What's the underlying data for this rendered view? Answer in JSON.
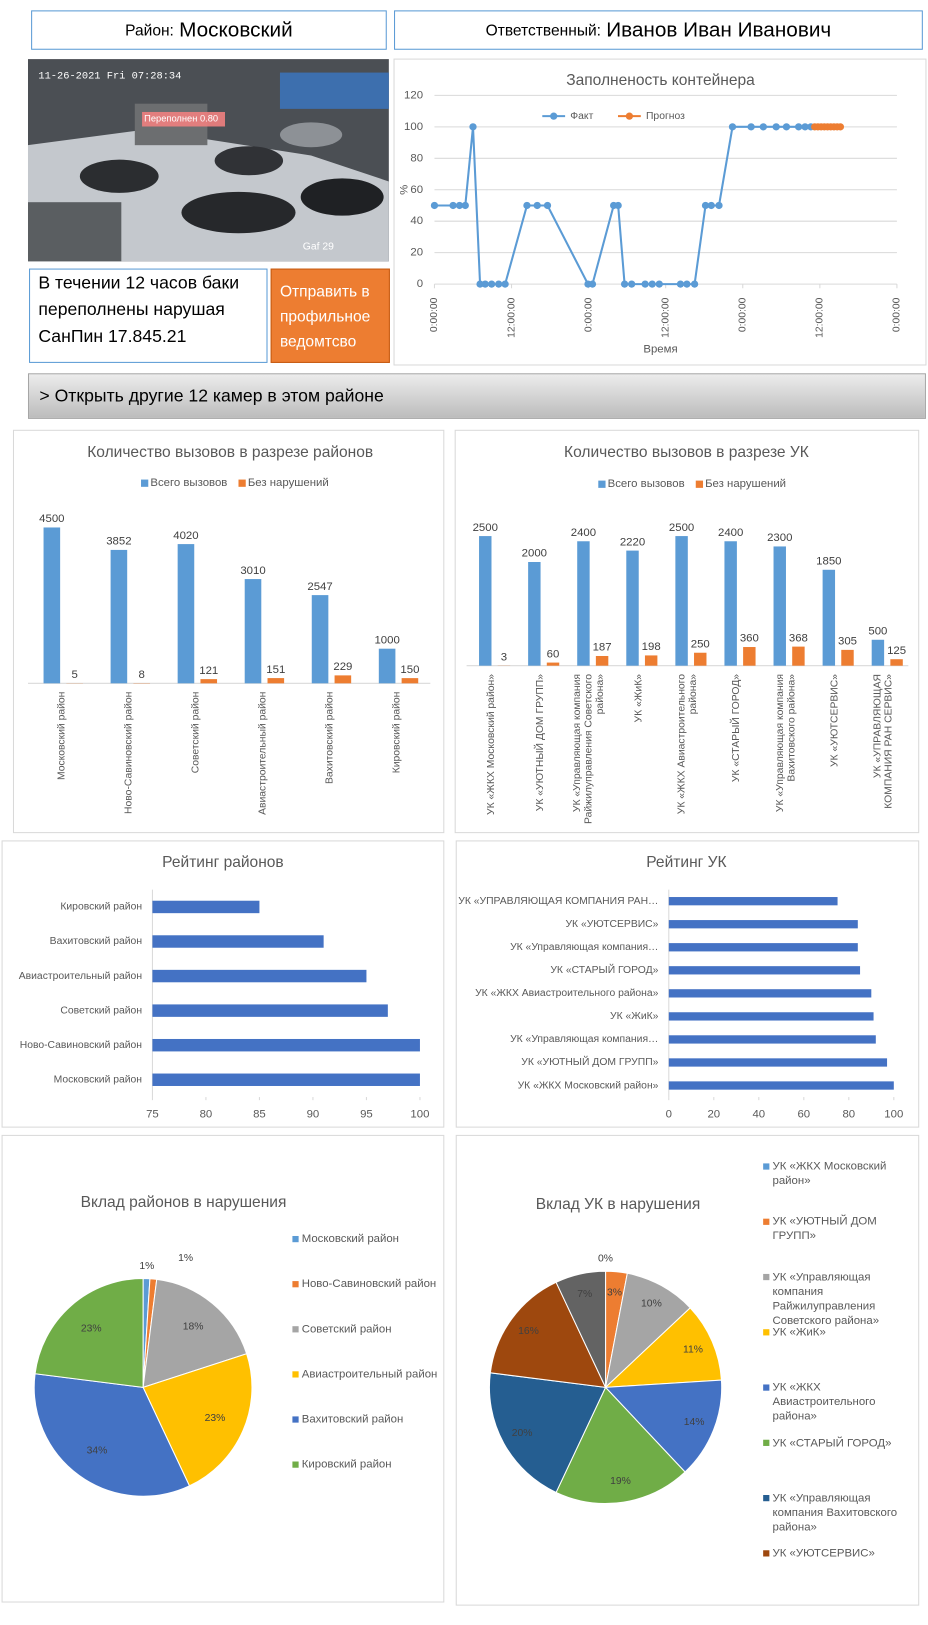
{
  "header": {
    "district_label": "Район:",
    "district": "Московский",
    "responsible_label": "Ответственный:",
    "responsible": "Иванов Иван Иванович"
  },
  "camera": {
    "timestamp": "11-26-2021 Fri 07:28:34",
    "detection": "Переполнен 0.80",
    "camera_name": "Gaf 29"
  },
  "alert": {
    "text": "В течении 12 часов баки переполнены нарушая  СанПин 17.845.21",
    "button": "Отправить в профильное ведомтсво"
  },
  "cameras_link": "> Открыть другие 12 камер в этом районе",
  "chart_data": [
    {
      "type": "line",
      "title": "Заполненость контейнера",
      "y_label": "%",
      "x_label": "Время",
      "xlim": [
        0,
        72
      ],
      "xticks": [
        {
          "value": 0,
          "label": "0:00:00"
        },
        {
          "value": 12,
          "label": "12:00:00"
        },
        {
          "value": 24,
          "label": "0:00:00"
        },
        {
          "value": 36,
          "label": "12:00:00"
        },
        {
          "value": 48,
          "label": "0:00:00"
        },
        {
          "value": 60,
          "label": "12:00:00"
        },
        {
          "value": 72,
          "label": "0:00:00"
        }
      ],
      "ylim": [
        0,
        120
      ],
      "yticks": [
        0,
        20,
        40,
        60,
        80,
        100,
        120
      ],
      "grid": true,
      "legend": "top",
      "series": [
        {
          "name": "Факт",
          "color": "#5b9bd5",
          "x": [
            0,
            2.9,
            3.9,
            4.8,
            6,
            7.1,
            7.9,
            8.9,
            10,
            11,
            14.4,
            16,
            17.6,
            23.9,
            24.6,
            27.9,
            28.6,
            29.6,
            30.7,
            32.8,
            33.9,
            35,
            38.3,
            39.3,
            40.5,
            42.2,
            43.1,
            44.3,
            46.4,
            49.3,
            51.2,
            53.2,
            54.8,
            56.7,
            57.7,
            58.6
          ],
          "values": [
            50,
            50,
            50,
            50,
            100,
            0,
            0,
            0,
            0,
            0,
            50,
            50,
            50,
            0,
            0,
            50,
            50,
            0,
            0,
            0,
            0,
            0,
            0,
            0,
            0,
            50,
            50,
            50,
            100,
            100,
            100,
            100,
            100,
            100,
            100,
            100
          ]
        },
        {
          "name": "Прогноз",
          "color": "#ed7d31",
          "x": [
            59.2,
            59.7,
            60.2,
            60.7,
            61.2,
            61.7,
            62.2,
            62.7,
            63.2
          ],
          "values": [
            100,
            100,
            100,
            100,
            100,
            100,
            100,
            100,
            100
          ]
        }
      ]
    },
    {
      "type": "bar",
      "title": "Количество вызовов в разрезе районов",
      "legend": "top",
      "ylim": [
        0,
        5000
      ],
      "categories": [
        "Московский район",
        "Ново-Савиновский район",
        "Советский район",
        "Авиастроительный район",
        "Вахитовский район",
        "Кировский район"
      ],
      "series": [
        {
          "name": "Всего вызовов",
          "color": "#5b9bd5",
          "values": [
            4500,
            3852,
            4020,
            3010,
            2547,
            1000
          ]
        },
        {
          "name": "Без нарушений",
          "color": "#ed7d31",
          "values": [
            5,
            8,
            121,
            151,
            229,
            150
          ]
        }
      ]
    },
    {
      "type": "bar",
      "title": "Количество вызовов в разрезе УК",
      "legend": "top",
      "ylim": [
        0,
        3000
      ],
      "categories": [
        "УК «ЖКХ Московский район»",
        "УК «УЮТНЫЙ ДОМ ГРУПП»",
        "УК «Управляющая компания Райжилуправления Советского района»",
        "УК «ЖиК»",
        "УК «ЖКХ Авиастроительного района»",
        "УК «СТАРЫЙ ГОРОД»",
        "УК «Управляющая компания Вахитовского района»",
        "УК «УЮТСЕРВИС»",
        "УК «УПРАВЛЯЮЩАЯ КОМПАНИЯ РАН СЕРВИС»"
      ],
      "series": [
        {
          "name": "Всего вызовов",
          "color": "#5b9bd5",
          "values": [
            2500,
            2000,
            2400,
            2220,
            2500,
            2400,
            2300,
            1850,
            500
          ]
        },
        {
          "name": "Без нарушений",
          "color": "#ed7d31",
          "values": [
            3,
            60,
            187,
            198,
            250,
            360,
            368,
            305,
            125
          ]
        }
      ]
    },
    {
      "type": "barh",
      "title": "Рейтинг районов",
      "color": "#4472c4",
      "categories": [
        "Кировский район",
        "Вахитовский район",
        "Авиастроительный район",
        "Советский район",
        "Ново-Савиновский район",
        "Московский район"
      ],
      "values": [
        85,
        91,
        95,
        97,
        100,
        100
      ],
      "xlim": [
        75,
        100
      ],
      "xticks": [
        75,
        80,
        85,
        90,
        95,
        100
      ]
    },
    {
      "type": "barh",
      "title": "Рейтинг УК",
      "color": "#4472c4",
      "categories": [
        "УК «УПРАВЛЯЮЩАЯ КОМПАНИЯ РАН…",
        "УК «УЮТСЕРВИС»",
        "УК «Управляющая компания…",
        "УК «СТАРЫЙ ГОРОД»",
        "УК «ЖКХ Авиастроительного района»",
        "УК «ЖиК»",
        "УК «Управляющая компания…",
        "УК «УЮТНЫЙ ДОМ ГРУПП»",
        "УК «ЖКХ Московский район»"
      ],
      "values": [
        75,
        84,
        84,
        85,
        90,
        91,
        92,
        97,
        100
      ],
      "xlim": [
        0,
        100
      ],
      "xticks": [
        0,
        20,
        40,
        60,
        80,
        100
      ]
    },
    {
      "type": "pie",
      "title": "Вклад районов в нарушения",
      "legend": "right",
      "categories": [
        "Московский район",
        "Ново-Савиновский район",
        "Советский район",
        "Авиастроительный район",
        "Вахитовский район",
        "Кировский район"
      ],
      "values": [
        1,
        1,
        18,
        23,
        34,
        23
      ],
      "value_labels": [
        "1%",
        "1%",
        "18%",
        "23%",
        "34%",
        "23%"
      ],
      "colors": [
        "#5b9bd5",
        "#ed7d31",
        "#a5a5a5",
        "#ffc000",
        "#4472c4",
        "#70ad47"
      ]
    },
    {
      "type": "pie",
      "title": "Вклад УК в нарушения",
      "legend": "right",
      "categories": [
        "УК «ЖКХ Московский район»",
        "УК «УЮТНЫЙ ДОМ ГРУПП»",
        "УК «Управляющая компания Райжилуправления Советского района»",
        "УК «ЖиК»",
        "УК «ЖКХ Авиастроительного района»",
        "УК «СТАРЫЙ ГОРОД»",
        "УК «Управляющая компания Вахитовского района»",
        "УК «УЮТСЕРВИС»",
        null
      ],
      "values": [
        0,
        3,
        10,
        11,
        14,
        19,
        20,
        16,
        7
      ],
      "value_labels": [
        "0%",
        "3%",
        "10%",
        "11%",
        "14%",
        "19%",
        "20%",
        "16%",
        "7%"
      ],
      "colors": [
        "#5b9bd5",
        "#ed7d31",
        "#a5a5a5",
        "#ffc000",
        "#4472c4",
        "#70ad47",
        "#255e91",
        "#9e480e",
        "#636363"
      ]
    }
  ]
}
